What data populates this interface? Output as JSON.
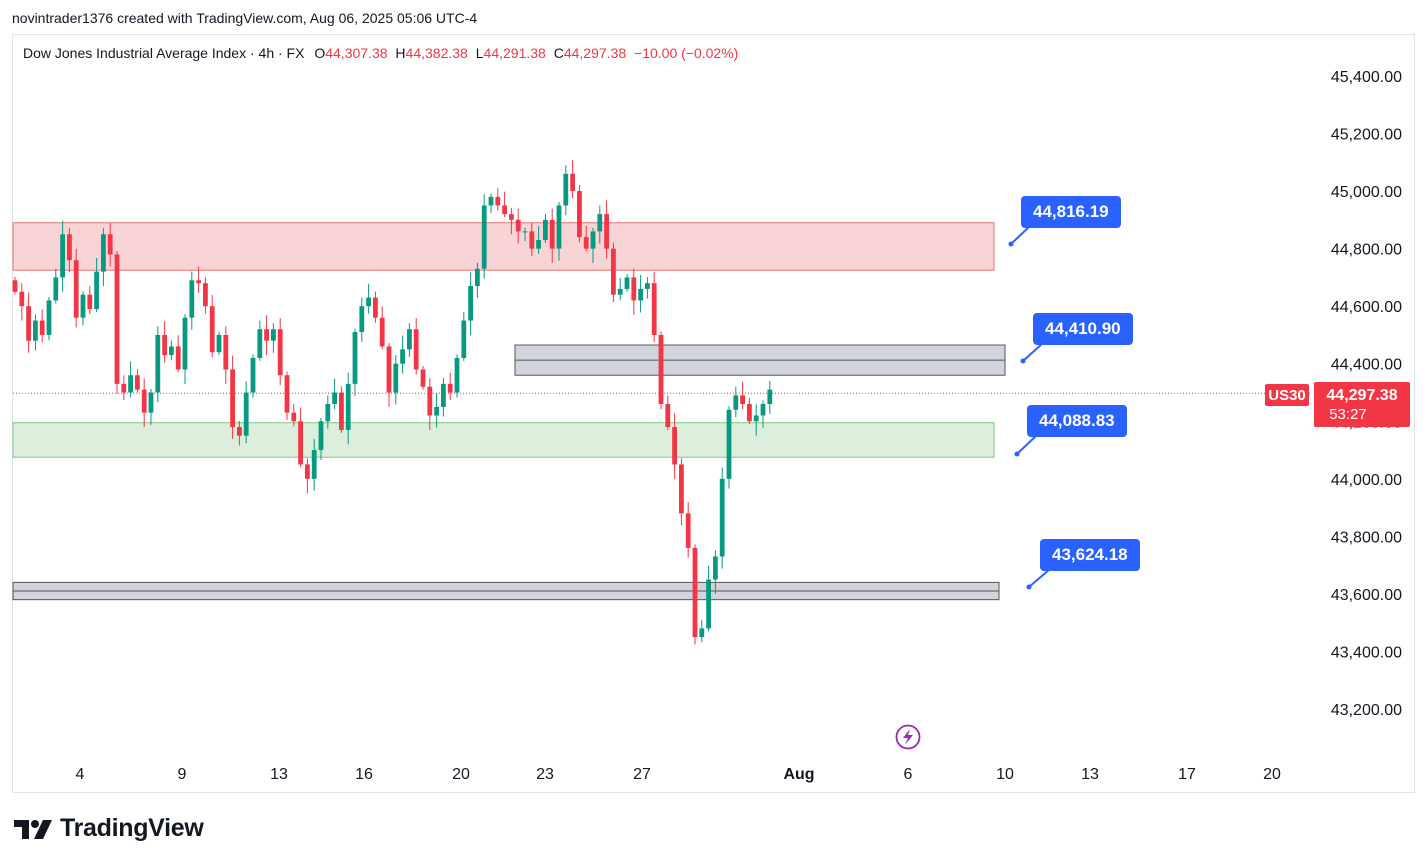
{
  "header": {
    "caption": "novintrader1376 created with TradingView.com, Aug 06, 2025 05:06 UTC-4"
  },
  "legend": {
    "symbol_desc": "Dow Jones Industrial Average Index · 4h · FX",
    "o_label": "O",
    "o_value": "44,307.38",
    "h_label": "H",
    "h_value": "44,382.38",
    "l_label": "L",
    "l_value": "44,291.38",
    "c_label": "C",
    "c_value": "44,297.38",
    "change": "−10.00 (−0.02%)"
  },
  "price_tag": {
    "symbol": "US30",
    "price": "44,297.38",
    "countdown": "53:27"
  },
  "callouts": [
    {
      "label": "44,816.19",
      "color": "#2962ff"
    },
    {
      "label": "44,410.90",
      "color": "#2962ff"
    },
    {
      "label": "44,088.83",
      "color": "#2962ff"
    },
    {
      "label": "43,624.18",
      "color": "#2962ff"
    }
  ],
  "brand": {
    "name": "TradingView",
    "logo_icon": "tradingview-logo-icon"
  },
  "colors": {
    "up": "#089981",
    "down": "#f23645",
    "resistance_zone": "#f8d4d6",
    "support_zone": "#dcefdc",
    "grey_zone": "#d1d4dc"
  },
  "chart_data": {
    "type": "candlestick",
    "symbol": "US30",
    "timeframe": "4h",
    "ylim": [
      43100,
      45500
    ],
    "y_ticks": [
      45400,
      45200,
      45000,
      44800,
      44600,
      44400,
      44200,
      44000,
      43800,
      43600,
      43400,
      43200
    ],
    "y_tick_labels": [
      "45,400.00",
      "45,200.00",
      "45,000.00",
      "44,800.00",
      "44,600.00",
      "44,400.00",
      "44,200.00",
      "44,000.00",
      "43,800.00",
      "43,600.00",
      "43,400.00",
      "43,200.00"
    ],
    "x_tick_labels": [
      "4",
      "9",
      "13",
      "16",
      "20",
      "23",
      "27",
      "Aug",
      "6",
      "10",
      "13",
      "17",
      "20"
    ],
    "last_price": 44297.38,
    "zones": [
      {
        "name": "resistance",
        "top": 44890,
        "bottom": 44725,
        "color": "#f8d4d6",
        "border": "#e57373"
      },
      {
        "name": "grey-upper",
        "top": 44465,
        "bottom": 44360,
        "color": "#d1d4dc",
        "border": "#555555"
      },
      {
        "name": "support",
        "top": 44195,
        "bottom": 44075,
        "color": "#dcefdc",
        "border": "#81c784"
      },
      {
        "name": "grey-lower",
        "top": 43640,
        "bottom": 43580,
        "color": "#d1d4dc",
        "border": "#555555"
      }
    ],
    "levels": [
      44816.19,
      44410.9,
      44088.83,
      43624.18
    ],
    "close_path": [
      44650,
      44600,
      44480,
      44550,
      44500,
      44620,
      44700,
      44850,
      44760,
      44560,
      44640,
      44590,
      44720,
      44850,
      44780,
      44330,
      44300,
      44360,
      44310,
      44230,
      44300,
      44500,
      44430,
      44460,
      44380,
      44560,
      44690,
      44680,
      44600,
      44440,
      44500,
      44380,
      44180,
      44150,
      44300,
      44420,
      44520,
      44480,
      44520,
      44360,
      44230,
      44200,
      44050,
      44000,
      44100,
      44200,
      44260,
      44300,
      44170,
      44330,
      44510,
      44600,
      44630,
      44560,
      44460,
      44300,
      44400,
      44450,
      44520,
      44380,
      44320,
      44220,
      44250,
      44330,
      44300,
      44420,
      44550,
      44670,
      44730,
      44950,
      44980,
      44950,
      44920,
      44900,
      44860,
      44860,
      44800,
      44830,
      44900,
      44800,
      44950,
      45060,
      45000,
      44840,
      44800,
      44860,
      44920,
      44800,
      44640,
      44660,
      44700,
      44620,
      44660,
      44680,
      44500,
      44260,
      44180,
      44050,
      43880,
      43760,
      43450,
      43480,
      43650,
      43730,
      44000,
      44240,
      44290,
      44260,
      44200,
      44220,
      44260,
      44310
    ]
  }
}
